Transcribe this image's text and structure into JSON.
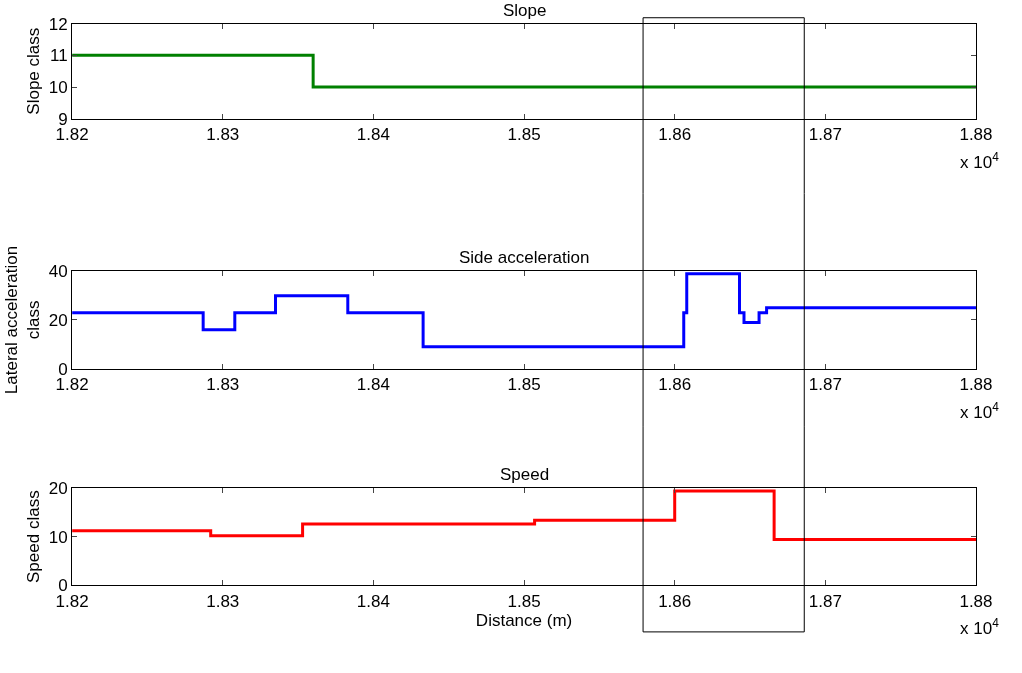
{
  "chart_data": [
    {
      "type": "step",
      "title": "Slope",
      "ylabel": "Slope class",
      "annotations": [
        "x 10$^{4}$"
      ],
      "series": [
        {
          "color": "#008000",
          "x": [
            1.82,
            1.836,
            1.88
          ],
          "values": [
            11,
            10,
            10
          ]
        }
      ],
      "xlim": [
        1.82,
        1.88
      ],
      "xticks": [
        1.82,
        1.83,
        1.84,
        1.85,
        1.86,
        1.87,
        1.88
      ],
      "ylim": [
        9,
        12
      ],
      "yticks": [
        9,
        10,
        11,
        12
      ],
      "ref_lines": [
        {
          "axis": "x",
          "value": 1.8579,
          "color": "#000000"
        },
        {
          "axis": "x",
          "value": 1.8686,
          "color": "#000000"
        }
      ]
    },
    {
      "type": "step",
      "title": "Side acceleration",
      "ylabel": "Lateral acceleration\nclass",
      "annotations": [
        "x 10$^{4}$"
      ],
      "series": [
        {
          "color": "#0000ff",
          "x": [
            1.82,
            1.8287,
            1.8308,
            1.8335,
            1.8383,
            1.8433,
            1.8606,
            1.8608,
            1.8643,
            1.8646,
            1.8656,
            1.8661,
            1.88
          ],
          "values": [
            23,
            16,
            23,
            30,
            23,
            9,
            23,
            39,
            23,
            19,
            23,
            25,
            25
          ]
        }
      ],
      "xlim": [
        1.82,
        1.88
      ],
      "xticks": [
        1.82,
        1.83,
        1.84,
        1.85,
        1.86,
        1.87,
        1.88
      ],
      "ylim": [
        0,
        40
      ],
      "yticks": [
        0,
        20,
        40
      ],
      "ref_lines": [
        {
          "axis": "x",
          "value": 1.8579,
          "color": "#000000"
        },
        {
          "axis": "x",
          "value": 1.8686,
          "color": "#000000"
        }
      ]
    },
    {
      "type": "step",
      "title": "Speed",
      "ylabel": "Speed class",
      "xlabel": "Distance (m)",
      "annotations": [
        "x 10$^{4}$"
      ],
      "series": [
        {
          "color": "#ff0000",
          "x": [
            1.82,
            1.8292,
            1.8353,
            1.8507,
            1.86,
            1.8666,
            1.88
          ],
          "values": [
            11.2,
            10.2,
            12.6,
            13.4,
            19.4,
            9.4,
            9.4
          ]
        }
      ],
      "xlim": [
        1.82,
        1.88
      ],
      "xticks": [
        1.82,
        1.83,
        1.84,
        1.85,
        1.86,
        1.87,
        1.88
      ],
      "ylim": [
        0,
        20
      ],
      "yticks": [
        0,
        10,
        20
      ],
      "ref_lines": [
        {
          "axis": "x",
          "value": 1.8579,
          "color": "#000000"
        },
        {
          "axis": "x",
          "value": 1.8686,
          "color": "#000000"
        }
      ]
    }
  ]
}
